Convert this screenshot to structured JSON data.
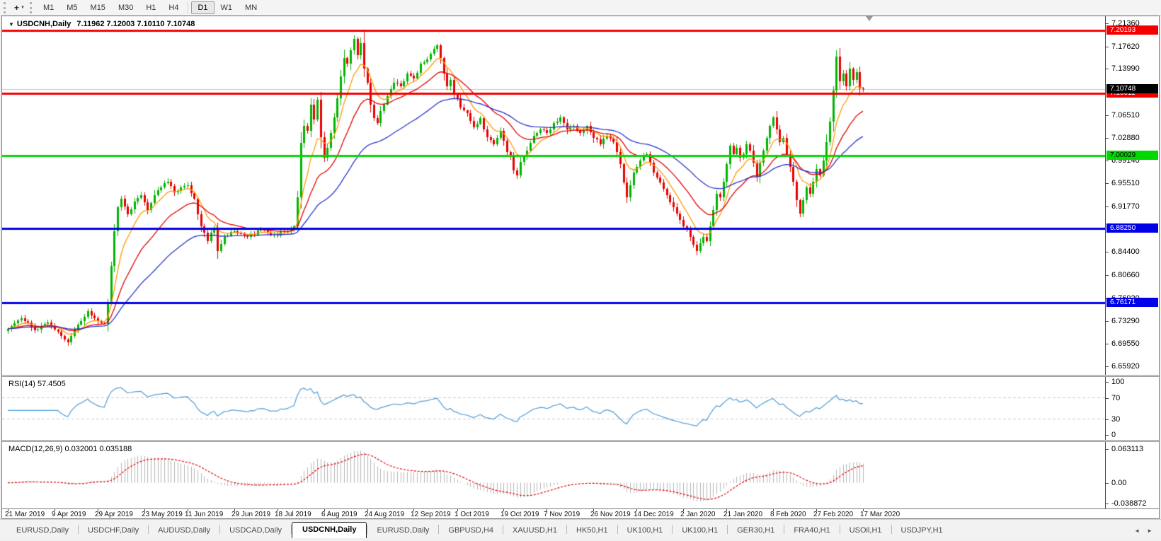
{
  "icons": {
    "dropdown": "▼",
    "crosshair": "+",
    "tab_left": "◄",
    "tab_right": "►"
  },
  "toolbar": {
    "timeframes": [
      {
        "label": "M1"
      },
      {
        "label": "M5"
      },
      {
        "label": "M15"
      },
      {
        "label": "M30"
      },
      {
        "label": "H1"
      },
      {
        "label": "H4"
      },
      {
        "label": "D1",
        "active": true,
        "sep_before": true
      },
      {
        "label": "W1"
      },
      {
        "label": "MN"
      }
    ]
  },
  "chart": {
    "title": "USDCNH,Daily",
    "ohlc_text": "7.11962 7.12003 7.10110 7.10748",
    "price_ticks": [
      "7.21360",
      "7.17620",
      "7.13990",
      "7.06510",
      "7.02880",
      "6.99140",
      "6.95510",
      "6.91770",
      "6.84400",
      "6.80660",
      "6.76920",
      "6.73290",
      "6.69550",
      "6.65920"
    ],
    "hlines": [
      {
        "price": 7.20193,
        "label": "7.20193",
        "color": "#f20000",
        "text_color": "#ffffff"
      },
      {
        "price": 7.10011,
        "label": "7.10011",
        "color": "#f20000",
        "text_color": "#ffffff"
      },
      {
        "price": 7.00029,
        "label": "7.00029",
        "color": "#00d800",
        "text_color": "#000000"
      },
      {
        "price": 6.8825,
        "label": "6.88250",
        "color": "#0000e8",
        "text_color": "#ffffff"
      },
      {
        "price": 6.76171,
        "label": "6.76171",
        "color": "#0000e8",
        "text_color": "#ffffff"
      }
    ],
    "current_price": {
      "price": 7.10748,
      "label": "7.10748",
      "bg": "#000000",
      "text_color": "#ffffff",
      "line_color": "#c4c4c4"
    }
  },
  "rsi": {
    "label": "RSI(14) 57.4505",
    "axis_ticks": [
      "100",
      "70",
      "30",
      "0"
    ],
    "axis_values": [
      100,
      70,
      30,
      0
    ],
    "levels": [
      70,
      30
    ],
    "line_color": "#4f9bd5",
    "level_color": "#c8c8c8"
  },
  "macd": {
    "label": "MACD(12,26,9) 0.032001 0.035188",
    "axis_ticks": [
      "0.063113",
      "0.00",
      "-0.038872"
    ],
    "axis_values": [
      0.063113,
      0,
      -0.038872
    ],
    "hist_color": "#b6b6b6",
    "signal_color": "#e00000"
  },
  "date_axis": [
    "21 Mar 2019",
    "9 Apr 2019",
    "29 Apr 2019",
    "23 May 2019",
    "11 Jun 2019",
    "29 Jun 2019",
    "18 Jul 2019",
    "6 Aug 2019",
    "24 Aug 2019",
    "12 Sep 2019",
    "1 Oct 2019",
    "19 Oct 2019",
    "7 Nov 2019",
    "26 Nov 2019",
    "14 Dec 2019",
    "2 Jan 2020",
    "21 Jan 2020",
    "8 Feb 2020",
    "27 Feb 2020",
    "17 Mar 2020"
  ],
  "tabs": [
    {
      "label": "EURUSD,Daily"
    },
    {
      "label": "USDCHF,Daily"
    },
    {
      "label": "AUDUSD,Daily"
    },
    {
      "label": "USDCAD,Daily"
    },
    {
      "label": "USDCNH,Daily",
      "active": true
    },
    {
      "label": "EURUSD,Daily"
    },
    {
      "label": "GBPUSD,H4"
    },
    {
      "label": "XAUUSD,H1"
    },
    {
      "label": "HK50,H1"
    },
    {
      "label": "UK100,H1"
    },
    {
      "label": "UK100,H1"
    },
    {
      "label": "GER30,H1"
    },
    {
      "label": "FRA40,H1"
    },
    {
      "label": "USOil,H1"
    },
    {
      "label": "USDJPY,H1"
    }
  ],
  "chart_data": {
    "type": "candlestick",
    "symbol": "USDCNH",
    "timeframe": "Daily",
    "ohlc_display": {
      "open": 7.11962,
      "high": 7.12003,
      "low": 7.1011,
      "close": 7.10748
    },
    "price_axis_range": [
      6.6592,
      7.2136
    ],
    "price_ticks": [
      7.2136,
      7.1762,
      7.1399,
      7.0651,
      7.0288,
      6.9914,
      6.9551,
      6.9177,
      6.844,
      6.8066,
      6.7692,
      6.7329,
      6.6955,
      6.6592
    ],
    "num_candles": 258,
    "right_gap_fraction": 0.22,
    "candle_colors": {
      "up": "#00b400",
      "down": "#e80000"
    },
    "moving_averages": [
      {
        "name": "fast",
        "color": "#ff9a00",
        "period": 8
      },
      {
        "name": "medium",
        "color": "#e00000",
        "period": 20
      },
      {
        "name": "slow",
        "color": "#2a35cc",
        "period": 45
      }
    ],
    "hlines": [
      7.20193,
      7.10011,
      7.00029,
      6.8825,
      6.76171
    ],
    "current_price": 7.10748,
    "max_high": 7.2015,
    "rsi": {
      "period": 14,
      "current": 57.4505,
      "levels": [
        30,
        70
      ],
      "range": [
        0,
        100
      ]
    },
    "macd": {
      "fast": 12,
      "slow": 26,
      "signal": 9,
      "macd_current": 0.032001,
      "signal_current": 0.035188,
      "range": [
        -0.038872,
        0.063113
      ]
    },
    "x_labels": [
      "21 Mar 2019",
      "9 Apr 2019",
      "29 Apr 2019",
      "23 May 2019",
      "11 Jun 2019",
      "29 Jun 2019",
      "18 Jul 2019",
      "6 Aug 2019",
      "24 Aug 2019",
      "12 Sep 2019",
      "1 Oct 2019",
      "19 Oct 2019",
      "7 Nov 2019",
      "26 Nov 2019",
      "14 Dec 2019",
      "2 Jan 2020",
      "21 Jan 2020",
      "8 Feb 2020",
      "27 Feb 2020",
      "17 Mar 2020"
    ],
    "close_keypoints": [
      [
        0,
        6.72
      ],
      [
        4,
        6.737
      ],
      [
        8,
        6.718
      ],
      [
        12,
        6.73
      ],
      [
        16,
        6.708
      ],
      [
        18,
        6.698
      ],
      [
        21,
        6.727
      ],
      [
        24,
        6.748
      ],
      [
        27,
        6.732
      ],
      [
        29,
        6.728
      ],
      [
        30,
        6.762
      ],
      [
        31,
        6.822
      ],
      [
        32,
        6.878
      ],
      [
        33,
        6.916
      ],
      [
        34,
        6.93
      ],
      [
        36,
        6.905
      ],
      [
        38,
        6.926
      ],
      [
        40,
        6.936
      ],
      [
        42,
        6.912
      ],
      [
        44,
        6.936
      ],
      [
        46,
        6.948
      ],
      [
        48,
        6.958
      ],
      [
        50,
        6.94
      ],
      [
        52,
        6.948
      ],
      [
        54,
        6.952
      ],
      [
        56,
        6.93
      ],
      [
        58,
        6.886
      ],
      [
        60,
        6.862
      ],
      [
        62,
        6.882
      ],
      [
        63,
        6.846
      ],
      [
        65,
        6.87
      ],
      [
        68,
        6.878
      ],
      [
        72,
        6.868
      ],
      [
        76,
        6.88
      ],
      [
        80,
        6.872
      ],
      [
        84,
        6.878
      ],
      [
        86,
        6.886
      ],
      [
        87,
        6.932
      ],
      [
        88,
        7.02
      ],
      [
        89,
        7.048
      ],
      [
        90,
        7.04
      ],
      [
        91,
        7.082
      ],
      [
        92,
        7.058
      ],
      [
        93,
        7.09
      ],
      [
        94,
        7.03
      ],
      [
        95,
        6.996
      ],
      [
        96,
        7.012
      ],
      [
        97,
        7.036
      ],
      [
        98,
        7.062
      ],
      [
        99,
        7.092
      ],
      [
        100,
        7.128
      ],
      [
        101,
        7.158
      ],
      [
        102,
        7.148
      ],
      [
        103,
        7.17
      ],
      [
        104,
        7.188
      ],
      [
        105,
        7.162
      ],
      [
        106,
        7.182
      ],
      [
        107,
        7.14
      ],
      [
        108,
        7.118
      ],
      [
        109,
        7.082
      ],
      [
        110,
        7.06
      ],
      [
        111,
        7.052
      ],
      [
        112,
        7.072
      ],
      [
        114,
        7.096
      ],
      [
        116,
        7.118
      ],
      [
        118,
        7.112
      ],
      [
        120,
        7.132
      ],
      [
        122,
        7.125
      ],
      [
        124,
        7.148
      ],
      [
        126,
        7.155
      ],
      [
        128,
        7.172
      ],
      [
        129,
        7.178
      ],
      [
        130,
        7.158
      ],
      [
        131,
        7.132
      ],
      [
        132,
        7.112
      ],
      [
        133,
        7.122
      ],
      [
        134,
        7.1
      ],
      [
        136,
        7.078
      ],
      [
        138,
        7.068
      ],
      [
        140,
        7.045
      ],
      [
        142,
        7.06
      ],
      [
        144,
        7.03
      ],
      [
        146,
        7.018
      ],
      [
        148,
        7.04
      ],
      [
        150,
        7.005
      ],
      [
        151,
        6.998
      ],
      [
        152,
        6.976
      ],
      [
        153,
        6.968
      ],
      [
        154,
        6.99
      ],
      [
        156,
        7.008
      ],
      [
        158,
        7.032
      ],
      [
        160,
        7.042
      ],
      [
        162,
        7.036
      ],
      [
        164,
        7.052
      ],
      [
        166,
        7.062
      ],
      [
        168,
        7.042
      ],
      [
        170,
        7.048
      ],
      [
        172,
        7.036
      ],
      [
        174,
        7.048
      ],
      [
        176,
        7.028
      ],
      [
        178,
        7.018
      ],
      [
        180,
        7.032
      ],
      [
        182,
        7.022
      ],
      [
        183,
        7.006
      ],
      [
        184,
        6.986
      ],
      [
        185,
        6.956
      ],
      [
        186,
        6.932
      ],
      [
        187,
        6.952
      ],
      [
        188,
        6.972
      ],
      [
        190,
        6.992
      ],
      [
        192,
        7.002
      ],
      [
        193,
        6.988
      ],
      [
        194,
        6.972
      ],
      [
        196,
        6.956
      ],
      [
        198,
        6.936
      ],
      [
        200,
        6.916
      ],
      [
        202,
        6.896
      ],
      [
        204,
        6.88
      ],
      [
        205,
        6.868
      ],
      [
        206,
        6.856
      ],
      [
        207,
        6.846
      ],
      [
        208,
        6.858
      ],
      [
        209,
        6.868
      ],
      [
        210,
        6.862
      ],
      [
        211,
        6.886
      ],
      [
        212,
        6.912
      ],
      [
        213,
        6.938
      ],
      [
        214,
        6.932
      ],
      [
        215,
        6.958
      ],
      [
        216,
        6.986
      ],
      [
        217,
        7.016
      ],
      [
        218,
        7.002
      ],
      [
        219,
        7.012
      ],
      [
        220,
        6.996
      ],
      [
        221,
        7.002
      ],
      [
        222,
        7.018
      ],
      [
        223,
        7.008
      ],
      [
        224,
        6.988
      ],
      [
        225,
        6.966
      ],
      [
        226,
        6.988
      ],
      [
        227,
        7.008
      ],
      [
        228,
        7.028
      ],
      [
        229,
        7.048
      ],
      [
        230,
        7.062
      ],
      [
        231,
        7.042
      ],
      [
        232,
        7.022
      ],
      [
        233,
        7.028
      ],
      [
        234,
        7.002
      ],
      [
        235,
        6.982
      ],
      [
        236,
        6.958
      ],
      [
        237,
        6.928
      ],
      [
        238,
        6.906
      ],
      [
        239,
        6.928
      ],
      [
        240,
        6.948
      ],
      [
        241,
        6.938
      ],
      [
        242,
        6.958
      ],
      [
        243,
        6.978
      ],
      [
        244,
        6.968
      ],
      [
        245,
        6.992
      ],
      [
        246,
        7.022
      ],
      [
        247,
        7.055
      ],
      [
        248,
        7.105
      ],
      [
        249,
        7.16
      ],
      [
        250,
        7.12
      ],
      [
        251,
        7.132
      ],
      [
        252,
        7.112
      ],
      [
        253,
        7.14
      ],
      [
        254,
        7.122
      ],
      [
        255,
        7.135
      ],
      [
        256,
        7.108
      ],
      [
        257,
        7.10748
      ]
    ]
  }
}
